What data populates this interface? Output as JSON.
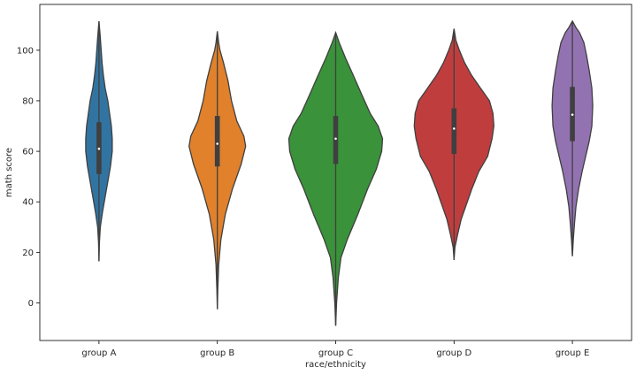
{
  "chart_data": {
    "type": "violin",
    "xlabel": "race/ethnicity",
    "ylabel": "math score",
    "ylim": [
      -15,
      115
    ],
    "yticks": [
      0,
      20,
      40,
      60,
      80,
      100
    ],
    "grid": false,
    "categories": [
      "group A",
      "group B",
      "group C",
      "group D",
      "group E"
    ],
    "colors": [
      "#3274a1",
      "#e1812c",
      "#3a923a",
      "#c03d3e",
      "#9372b2"
    ],
    "violins": [
      {
        "category": "group A",
        "min": 16.5,
        "q1": 51,
        "median": 61,
        "q3": 71.5,
        "max": 111.5,
        "profile": [
          [
            16.5,
            0
          ],
          [
            24,
            0.5
          ],
          [
            30,
            1.5
          ],
          [
            36,
            4
          ],
          [
            42,
            7
          ],
          [
            48,
            10
          ],
          [
            54,
            13
          ],
          [
            60,
            15
          ],
          [
            65,
            15
          ],
          [
            70,
            14
          ],
          [
            75,
            12
          ],
          [
            80,
            10
          ],
          [
            85,
            7
          ],
          [
            90,
            5
          ],
          [
            95,
            3.5
          ],
          [
            100,
            2.5
          ],
          [
            105,
            1.5
          ],
          [
            111.5,
            0
          ]
        ]
      },
      {
        "category": "group B",
        "min": -2.5,
        "q1": 54,
        "median": 63,
        "q3": 74,
        "max": 107.5,
        "profile": [
          [
            -2.5,
            0
          ],
          [
            5,
            0.5
          ],
          [
            15,
            1.5
          ],
          [
            25,
            4
          ],
          [
            35,
            9
          ],
          [
            45,
            17
          ],
          [
            55,
            27
          ],
          [
            62,
            32
          ],
          [
            66,
            30
          ],
          [
            72,
            22
          ],
          [
            80,
            16
          ],
          [
            88,
            12
          ],
          [
            95,
            7
          ],
          [
            100,
            3
          ],
          [
            103,
            1.5
          ],
          [
            107.5,
            0
          ]
        ]
      },
      {
        "category": "group C",
        "min": -9,
        "q1": 55,
        "median": 65,
        "q3": 74,
        "max": 107,
        "profile": [
          [
            -9,
            0
          ],
          [
            0,
            1
          ],
          [
            10,
            3
          ],
          [
            18,
            6
          ],
          [
            25,
            13
          ],
          [
            35,
            25
          ],
          [
            45,
            36
          ],
          [
            53,
            46
          ],
          [
            60,
            52
          ],
          [
            65,
            53
          ],
          [
            70,
            48
          ],
          [
            75,
            39
          ],
          [
            82,
            30
          ],
          [
            90,
            20
          ],
          [
            97,
            11
          ],
          [
            103,
            4
          ],
          [
            107,
            0
          ]
        ]
      },
      {
        "category": "group D",
        "min": 17,
        "q1": 59,
        "median": 69,
        "q3": 77,
        "max": 108.5,
        "profile": [
          [
            17,
            0
          ],
          [
            22,
            1
          ],
          [
            27,
            4
          ],
          [
            33,
            8
          ],
          [
            38,
            13
          ],
          [
            45,
            20
          ],
          [
            52,
            28
          ],
          [
            58,
            38
          ],
          [
            65,
            43
          ],
          [
            70,
            45
          ],
          [
            75,
            44
          ],
          [
            80,
            40
          ],
          [
            85,
            30
          ],
          [
            90,
            20
          ],
          [
            95,
            12
          ],
          [
            100,
            6
          ],
          [
            104,
            2
          ],
          [
            108.5,
            0
          ]
        ]
      },
      {
        "category": "group E",
        "min": 18.5,
        "q1": 64,
        "median": 74.5,
        "q3": 85.5,
        "max": 111.5,
        "profile": [
          [
            18.5,
            0
          ],
          [
            25,
            1
          ],
          [
            32,
            2.5
          ],
          [
            38,
            4
          ],
          [
            45,
            7
          ],
          [
            52,
            11
          ],
          [
            58,
            15
          ],
          [
            64,
            19
          ],
          [
            70,
            22
          ],
          [
            78,
            23
          ],
          [
            85,
            22
          ],
          [
            92,
            19
          ],
          [
            98,
            16
          ],
          [
            103,
            13
          ],
          [
            107,
            8
          ],
          [
            109,
            4
          ],
          [
            111.5,
            0
          ]
        ]
      }
    ]
  }
}
